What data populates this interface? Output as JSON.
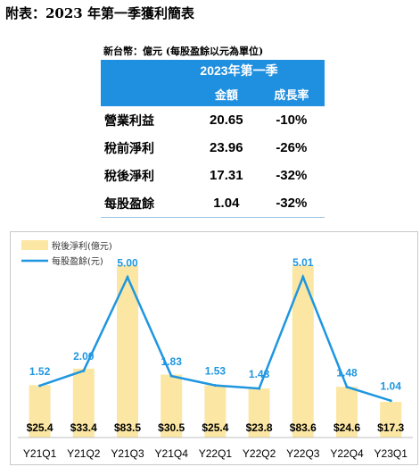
{
  "title": "附表：2023 年第一季獲利簡表",
  "summary_table": {
    "unit_note": "新台幣：億元 (每股盈餘以元為單位)",
    "period_header": "2023年第一季",
    "col_amount": "金額",
    "col_growth": "成長率",
    "rows": [
      {
        "label": "營業利益",
        "amount": "20.65",
        "growth": "-10%"
      },
      {
        "label": "稅前淨利",
        "amount": "23.96",
        "growth": "-26%"
      },
      {
        "label": "稅後淨利",
        "amount": "17.31",
        "growth": "-32%"
      },
      {
        "label": "每股盈餘",
        "amount": "1.04",
        "growth": "-32%"
      }
    ]
  },
  "chart_data": {
    "type": "bar",
    "categories": [
      "Y21Q1",
      "Y21Q2",
      "Y21Q3",
      "Y21Q4",
      "Y22Q1",
      "Y22Q2",
      "Y22Q3",
      "Y22Q4",
      "Y23Q1"
    ],
    "series": [
      {
        "name": "稅後淨利(億元)",
        "type": "bar",
        "color": "#fbe7a3",
        "values": [
          25.4,
          33.4,
          83.5,
          30.5,
          25.4,
          23.8,
          83.6,
          24.6,
          17.3
        ],
        "labels": [
          "$25.4",
          "$33.4",
          "$83.5",
          "$30.5",
          "$25.4",
          "$23.8",
          "$83.6",
          "$24.6",
          "$17.3"
        ]
      },
      {
        "name": "每股盈餘(元)",
        "type": "line",
        "color": "#1e96e0",
        "values": [
          1.52,
          2.0,
          5.0,
          1.83,
          1.53,
          1.43,
          5.01,
          1.48,
          1.04
        ],
        "labels": [
          "1.52",
          "2.00",
          "5.00",
          "1.83",
          "1.53",
          "1.43",
          "5.01",
          "1.48",
          "1.04"
        ]
      }
    ],
    "legend_position": "top-left",
    "grid": false
  }
}
